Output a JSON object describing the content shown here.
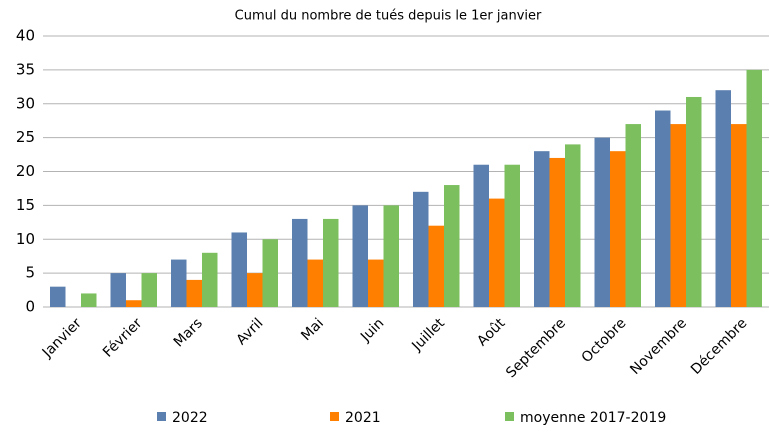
{
  "chart_data": {
    "type": "bar",
    "title": "Cumul du nombre de tués depuis le 1er janvier",
    "categories": [
      "Janvier",
      "Février",
      "Mars",
      "Avril",
      "Mai",
      "Juin",
      "Juillet",
      "Août",
      "Septembre",
      "Octobre",
      "Novembre",
      "Décembre"
    ],
    "series": [
      {
        "name": "2022",
        "color": "#5b7fae",
        "values": [
          3,
          5,
          7,
          11,
          13,
          15,
          17,
          21,
          23,
          25,
          29,
          32
        ]
      },
      {
        "name": "2021",
        "color": "#ff8000",
        "values": [
          0,
          1,
          4,
          5,
          7,
          7,
          12,
          16,
          22,
          23,
          27,
          27
        ]
      },
      {
        "name": "moyenne 2017-2019",
        "color": "#7cbf5e",
        "values": [
          2,
          5,
          8,
          10,
          13,
          15,
          18,
          21,
          24,
          27,
          31,
          35
        ]
      }
    ],
    "ylim": [
      0,
      40
    ],
    "yticks": [
      0,
      5,
      10,
      15,
      20,
      25,
      30,
      35,
      40
    ],
    "grid": true,
    "legend": "bottom"
  }
}
